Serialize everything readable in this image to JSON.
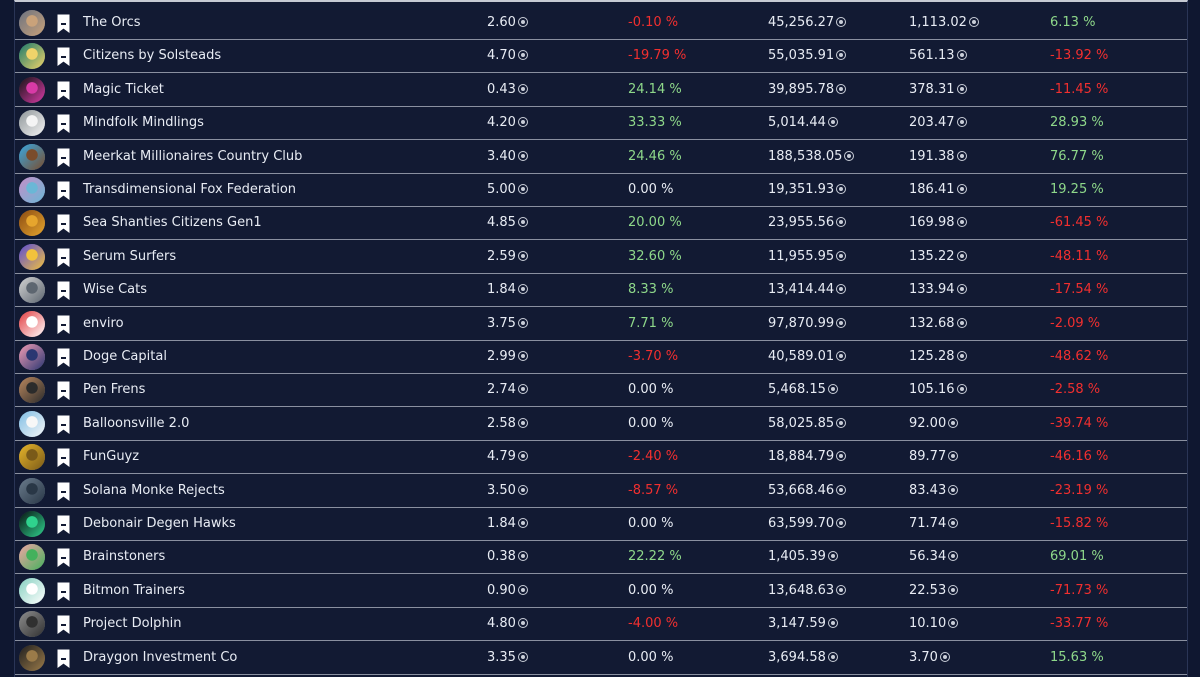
{
  "table": {
    "rows": [
      {
        "name": "The Orcs",
        "floor": "2.60",
        "floor_change": "-0.10 %",
        "floor_change_dir": "neg",
        "volume": "45,256.27",
        "avg": "1,113.02",
        "vol_change": "6.13 %",
        "vol_change_dir": "pos",
        "avatar_color": "#6c7280",
        "avatar_accent": "#c9a27a"
      },
      {
        "name": "Citizens by Solsteads",
        "floor": "4.70",
        "floor_change": "-19.79 %",
        "floor_change_dir": "neg",
        "volume": "55,035.91",
        "avg": "561.13",
        "vol_change": "-13.92 %",
        "vol_change_dir": "neg",
        "avatar_color": "#1b7a6b",
        "avatar_accent": "#f0d36a"
      },
      {
        "name": "Magic Ticket",
        "floor": "0.43",
        "floor_change": "24.14 %",
        "floor_change_dir": "pos",
        "volume": "39,895.78",
        "avg": "378.31",
        "vol_change": "-11.45 %",
        "vol_change_dir": "neg",
        "avatar_color": "#141414",
        "avatar_accent": "#d83aa6"
      },
      {
        "name": "Mindfolk Mindlings",
        "floor": "4.20",
        "floor_change": "33.33 %",
        "floor_change_dir": "pos",
        "volume": "5,014.44",
        "avg": "203.47",
        "vol_change": "28.93 %",
        "vol_change_dir": "pos",
        "avatar_color": "#8f9699",
        "avatar_accent": "#f4f4f4"
      },
      {
        "name": "Meerkat Millionaires Country Club",
        "floor": "3.40",
        "floor_change": "24.46 %",
        "floor_change_dir": "pos",
        "volume": "188,538.05",
        "avg": "191.38",
        "vol_change": "76.77 %",
        "vol_change_dir": "pos",
        "avatar_color": "#39a7e0",
        "avatar_accent": "#7a4c2c"
      },
      {
        "name": "Transdimensional Fox Federation",
        "floor": "5.00",
        "floor_change": "0.00 %",
        "floor_change_dir": "neu",
        "volume": "19,351.93",
        "avg": "186.41",
        "vol_change": "19.25 %",
        "vol_change_dir": "pos",
        "avatar_color": "#c58fc8",
        "avatar_accent": "#6ab7d6"
      },
      {
        "name": "Sea Shanties Citizens Gen1",
        "floor": "4.85",
        "floor_change": "20.00 %",
        "floor_change_dir": "pos",
        "volume": "23,955.56",
        "avg": "169.98",
        "vol_change": "-61.45 %",
        "vol_change_dir": "neg",
        "avatar_color": "#8a4b12",
        "avatar_accent": "#e6a52d"
      },
      {
        "name": "Serum Surfers",
        "floor": "2.59",
        "floor_change": "32.60 %",
        "floor_change_dir": "pos",
        "volume": "11,955.95",
        "avg": "135.22",
        "vol_change": "-48.11 %",
        "vol_change_dir": "neg",
        "avatar_color": "#5b4bd6",
        "avatar_accent": "#f2c23c"
      },
      {
        "name": "Wise Cats",
        "floor": "1.84",
        "floor_change": "8.33 %",
        "floor_change_dir": "pos",
        "volume": "13,414.44",
        "avg": "133.94",
        "vol_change": "-17.54 %",
        "vol_change_dir": "neg",
        "avatar_color": "#d3d3d3",
        "avatar_accent": "#5d6670"
      },
      {
        "name": "enviro",
        "floor": "3.75",
        "floor_change": "7.71 %",
        "floor_change_dir": "pos",
        "volume": "97,870.99",
        "avg": "132.68",
        "vol_change": "-2.09 %",
        "vol_change_dir": "neg",
        "avatar_color": "#e13b3f",
        "avatar_accent": "#ffffff"
      },
      {
        "name": "Doge Capital",
        "floor": "2.99",
        "floor_change": "-3.70 %",
        "floor_change_dir": "neg",
        "volume": "40,589.01",
        "avg": "125.28",
        "vol_change": "-48.62 %",
        "vol_change_dir": "neg",
        "avatar_color": "#f29cb4",
        "avatar_accent": "#2a3772"
      },
      {
        "name": "Pen Frens",
        "floor": "2.74",
        "floor_change": "0.00 %",
        "floor_change_dir": "neu",
        "volume": "5,468.15",
        "avg": "105.16",
        "vol_change": "-2.58 %",
        "vol_change_dir": "neg",
        "avatar_color": "#b9875d",
        "avatar_accent": "#2b2b2b"
      },
      {
        "name": "Balloonsville 2.0",
        "floor": "2.58",
        "floor_change": "0.00 %",
        "floor_change_dir": "neu",
        "volume": "58,025.85",
        "avg": "92.00",
        "vol_change": "-39.74 %",
        "vol_change_dir": "neg",
        "avatar_color": "#7fbde4",
        "avatar_accent": "#f7f7f7"
      },
      {
        "name": "FunGuyz",
        "floor": "4.79",
        "floor_change": "-2.40 %",
        "floor_change_dir": "neg",
        "volume": "18,884.79",
        "avg": "89.77",
        "vol_change": "-46.16 %",
        "vol_change_dir": "neg",
        "avatar_color": "#e7b52a",
        "avatar_accent": "#7a5a19"
      },
      {
        "name": "Solana Monke Rejects",
        "floor": "3.50",
        "floor_change": "-8.57 %",
        "floor_change_dir": "neg",
        "volume": "53,668.46",
        "avg": "83.43",
        "vol_change": "-23.19 %",
        "vol_change_dir": "neg",
        "avatar_color": "#6a7b8c",
        "avatar_accent": "#293746"
      },
      {
        "name": "Debonair Degen Hawks",
        "floor": "1.84",
        "floor_change": "0.00 %",
        "floor_change_dir": "neu",
        "volume": "63,599.70",
        "avg": "71.74",
        "vol_change": "-15.82 %",
        "vol_change_dir": "neg",
        "avatar_color": "#081111",
        "avatar_accent": "#2fd28d"
      },
      {
        "name": "Brainstoners",
        "floor": "0.38",
        "floor_change": "22.22 %",
        "floor_change_dir": "pos",
        "volume": "1,405.39",
        "avg": "56.34",
        "vol_change": "69.01 %",
        "vol_change_dir": "pos",
        "avatar_color": "#f0a5a4",
        "avatar_accent": "#43b15c"
      },
      {
        "name": "Bitmon Trainers",
        "floor": "0.90",
        "floor_change": "0.00 %",
        "floor_change_dir": "neu",
        "volume": "13,648.63",
        "avg": "22.53",
        "vol_change": "-71.73 %",
        "vol_change_dir": "neg",
        "avatar_color": "#86d0c0",
        "avatar_accent": "#ffffff"
      },
      {
        "name": "Project Dolphin",
        "floor": "4.80",
        "floor_change": "-4.00 %",
        "floor_change_dir": "neg",
        "volume": "3,147.59",
        "avg": "10.10",
        "vol_change": "-33.77 %",
        "vol_change_dir": "neg",
        "avatar_color": "#8e8e8e",
        "avatar_accent": "#303030"
      },
      {
        "name": "Draygon Investment Co",
        "floor": "3.35",
        "floor_change": "0.00 %",
        "floor_change_dir": "neu",
        "volume": "3,694.58",
        "avg": "3.70",
        "vol_change": "15.63 %",
        "vol_change_dir": "pos",
        "avatar_color": "#1f1f1f",
        "avatar_accent": "#9b7b49"
      }
    ]
  }
}
